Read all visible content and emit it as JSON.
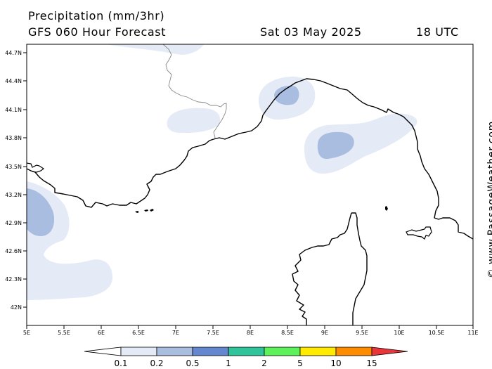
{
  "header": {
    "title": "Precipitation (mm/3hr)",
    "subtitle": "GFS 060 Hour Forecast",
    "date": "Sat 03 May 2025",
    "time": "18 UTC"
  },
  "map": {
    "lat_labels": [
      "44.7N",
      "44.4N",
      "44.1N",
      "43.8N",
      "43.5N",
      "43.2N",
      "42.9N",
      "42.6N",
      "42.3N",
      "42N"
    ],
    "lon_labels": [
      "5E",
      "5.5E",
      "6E",
      "6.5E",
      "7E",
      "7.5E",
      "8E",
      "8.5E",
      "9E",
      "9.5E",
      "10E",
      "10.5E",
      "11E"
    ]
  },
  "legend": {
    "labels": [
      "0.1",
      "0.2",
      "0.5",
      "1",
      "2",
      "5",
      "10",
      "15"
    ],
    "colors": [
      "#ffffff",
      "#e4eaf6",
      "#a9bde0",
      "#6587cf",
      "#2fc49a",
      "#5ef25a",
      "#ffea00",
      "#ff8c00",
      "#e8363b"
    ]
  },
  "credit": "© www.PassageWeather.com"
}
